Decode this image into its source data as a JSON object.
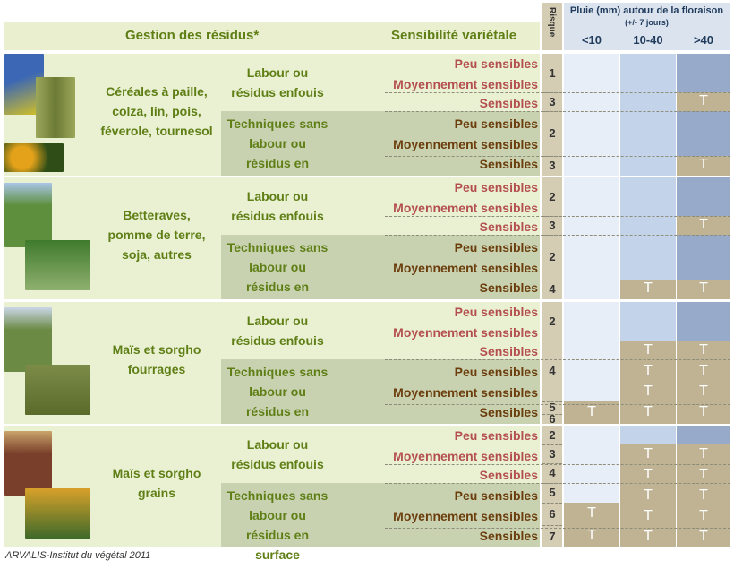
{
  "header": {
    "residue_title": "Gestion des résidus*",
    "sensitivity_title": "Sensibilité variétale",
    "risk_title": "Risque",
    "rain_title": "Pluie (mm) autour de la floraison",
    "rain_sub": "(+/- 7 jours)",
    "rain_categories": [
      "<10",
      "10-40",
      ">40"
    ]
  },
  "groups": [
    {
      "crop_lines": [
        "Céréales à paille,",
        "colza, lin, pois,",
        "féverole, tournesol"
      ],
      "managements": [
        {
          "lines": [
            "Labour ou",
            "résidus enfouis"
          ]
        },
        {
          "lines": [
            "Techniques sans",
            "labour   ou",
            "résidus en surface"
          ]
        }
      ]
    },
    {
      "crop_lines": [
        "Betteraves,",
        "pomme de terre,",
        "soja, autres"
      ],
      "managements": [
        {
          "lines": [
            "Labour ou",
            "résidus enfouis"
          ]
        },
        {
          "lines": [
            "Techniques sans",
            "labour   ou",
            "résidus en surface"
          ]
        }
      ]
    },
    {
      "crop_lines": [
        "Maïs et sorgho",
        "fourrages"
      ],
      "managements": [
        {
          "lines": [
            "Labour ou",
            "résidus enfouis"
          ]
        },
        {
          "lines": [
            "Techniques sans",
            "labour   ou",
            "résidus en surface"
          ]
        }
      ]
    },
    {
      "crop_lines": [
        "Maïs et sorgho",
        "grains"
      ],
      "managements": [
        {
          "lines": [
            "Labour ou",
            "résidus enfouis"
          ]
        },
        {
          "lines": [
            "Techniques sans",
            "labour   ou",
            "résidus en surface"
          ]
        }
      ]
    }
  ],
  "sensitivity_labels": [
    "Peu sensibles",
    "Moyennement sensibles",
    "Sensibles",
    "Peu sensibles",
    "Moyennement sensibles",
    "Sensibles",
    "Peu sensibles",
    "Moyennement sensibles",
    "Sensibles",
    "Peu sensibles",
    "Moyennement sensibles",
    "Sensibles",
    "Peu sensibles",
    "Moyennement sensibles",
    "Sensibles",
    "Peu sensibles",
    "Moyennement sensibles",
    "Sensibles",
    "Peu sensibles",
    "Moyennement sensibles",
    "Sensibles",
    "Peu sensibles",
    "Moyennement sensibles",
    "Sensibles"
  ],
  "risk_levels": [
    "1",
    "3",
    "2",
    "3",
    "2",
    "3",
    "2",
    "4",
    "2",
    "4",
    "5",
    "6",
    "2",
    "3",
    "4",
    "5",
    "6",
    "7"
  ],
  "treatment_mark": "T",
  "credit": "ARVALIS-Institut du végétal 2011",
  "colors": {
    "header_green": "#e9efcf",
    "crop_panel": "#eaf1d2",
    "tillage_panel": "#c8d2b0",
    "title_green": "#5f7f16",
    "label_pink": "#b44f4f",
    "label_brown": "#6b3d0c",
    "risk_tan": "#d5ccb4",
    "rain_low": "#e7eef8",
    "rain_mid": "#c3d3ea",
    "rain_high": "#97aac9",
    "treatment_tan": "#bfb394"
  }
}
